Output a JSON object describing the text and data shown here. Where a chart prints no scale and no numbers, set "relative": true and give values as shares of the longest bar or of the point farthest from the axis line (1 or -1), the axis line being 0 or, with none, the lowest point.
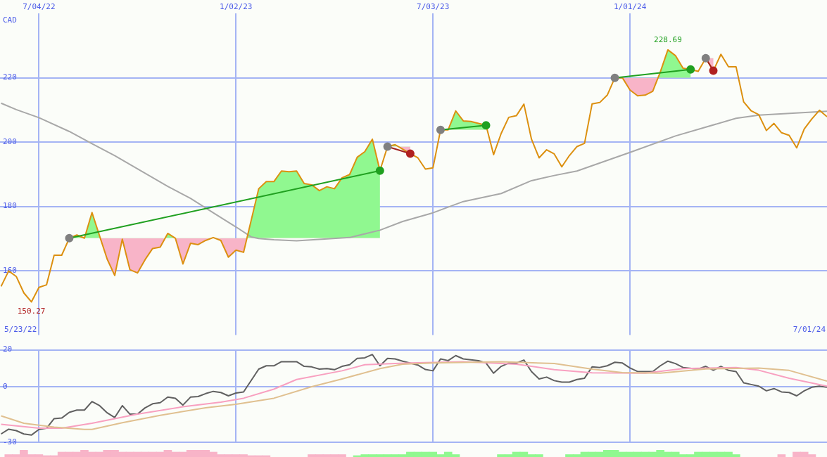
{
  "chart_data": [
    {
      "type": "line",
      "ylabel": "CAD",
      "grid": true,
      "xlim": [
        "2022-05-29",
        "2024-07-01"
      ],
      "xticks": [
        {
          "value": "2022-07-04",
          "label": "7/04/22"
        },
        {
          "value": "2023-01-02",
          "label": "1/02/23"
        },
        {
          "value": "2023-07-03",
          "label": "7/03/23"
        },
        {
          "value": "2024-01-01",
          "label": "1/01/24"
        }
      ],
      "ylim": [
        140,
        240
      ],
      "yticks": [
        160,
        180,
        200,
        220
      ],
      "annotations": [
        "5/23/22",
        "7/01/24",
        {
          "text": "150.27",
          "x": "2022-06-27",
          "y": 150.27
        },
        {
          "text": "228.69",
          "x": "2024-02-05",
          "y": 228.69
        }
      ],
      "x": [
        "2022-05-30",
        "2022-06-06",
        "2022-06-13",
        "2022-06-20",
        "2022-06-27",
        "2022-07-04",
        "2022-07-11",
        "2022-07-18",
        "2022-07-25",
        "2022-08-01",
        "2022-08-08",
        "2022-08-15",
        "2022-08-22",
        "2022-08-29",
        "2022-09-05",
        "2022-09-12",
        "2022-09-19",
        "2022-09-26",
        "2022-10-03",
        "2022-10-10",
        "2022-10-17",
        "2022-10-24",
        "2022-10-31",
        "2022-11-07",
        "2022-11-14",
        "2022-11-21",
        "2022-11-28",
        "2022-12-05",
        "2022-12-12",
        "2022-12-19",
        "2022-12-26",
        "2023-01-02",
        "2023-01-09",
        "2023-01-23",
        "2023-01-30",
        "2023-02-06",
        "2023-02-13",
        "2023-02-20",
        "2023-02-27",
        "2023-03-06",
        "2023-03-13",
        "2023-03-20",
        "2023-03-27",
        "2023-04-03",
        "2023-04-10",
        "2023-04-17",
        "2023-04-24",
        "2023-05-01",
        "2023-05-08",
        "2023-05-15",
        "2023-05-22",
        "2023-05-29",
        "2023-06-05",
        "2023-06-12",
        "2023-06-19",
        "2023-06-26",
        "2023-07-03",
        "2023-07-10",
        "2023-07-17",
        "2023-07-24",
        "2023-07-31",
        "2023-08-07",
        "2023-08-14",
        "2023-08-21",
        "2023-08-28",
        "2023-09-04",
        "2023-09-11",
        "2023-09-18",
        "2023-09-25",
        "2023-10-02",
        "2023-10-09",
        "2023-10-16",
        "2023-10-23",
        "2023-10-30",
        "2023-11-06",
        "2023-11-13",
        "2023-11-20",
        "2023-11-27",
        "2023-12-04",
        "2023-12-11",
        "2023-12-18",
        "2023-12-25",
        "2024-01-01",
        "2024-01-08",
        "2024-01-15",
        "2024-01-22",
        "2024-01-29",
        "2024-02-05",
        "2024-02-12",
        "2024-02-19",
        "2024-02-26",
        "2024-03-04",
        "2024-03-11",
        "2024-03-18",
        "2024-03-25",
        "2024-04-01",
        "2024-04-08",
        "2024-04-15",
        "2024-04-22",
        "2024-04-29",
        "2024-05-06",
        "2024-05-13",
        "2024-05-20",
        "2024-05-27",
        "2024-06-03",
        "2024-06-10",
        "2024-06-17",
        "2024-06-24",
        "2024-07-01"
      ],
      "series": [
        {
          "color": "#dc9010",
          "values": [
            155.1,
            159.9,
            158.2,
            153.1,
            150.27,
            154.8,
            155.6,
            164.8,
            164.8,
            170.1,
            171.1,
            170.1,
            178.1,
            170.8,
            163.6,
            158.5,
            169.8,
            160.3,
            159.3,
            163.4,
            166.9,
            167.3,
            171.6,
            170.1,
            162.1,
            168.5,
            168.1,
            169.4,
            170.3,
            169.4,
            164.2,
            166.4,
            165.7,
            185.5,
            187.7,
            187.7,
            191.0,
            190.8,
            191.0,
            187.1,
            186.7,
            184.9,
            186.1,
            185.5,
            188.9,
            189.9,
            195.3,
            197.0,
            200.9,
            191.1,
            198.6,
            199.2,
            197.8,
            196.4,
            195.1,
            191.6,
            192.0,
            203.8,
            203.8,
            209.7,
            206.6,
            206.4,
            205.8,
            205.2,
            196.1,
            202.7,
            207.7,
            208.2,
            211.8,
            200.9,
            195.1,
            197.6,
            196.3,
            192.3,
            195.8,
            198.6,
            199.6,
            211.9,
            212.3,
            214.6,
            220.0,
            220.0,
            216.2,
            214.4,
            214.6,
            215.8,
            221.8,
            228.69,
            226.9,
            223.0,
            222.6,
            222.0,
            226.1,
            222.2,
            227.3,
            223.4,
            223.4,
            212.5,
            209.7,
            208.5,
            203.6,
            205.8,
            202.9,
            202.1,
            198.2,
            204.1,
            207.2,
            209.9,
            207.9
          ]
        },
        {
          "color": "#a8a8a8",
          "x": [
            "2022-05-30",
            "2022-06-13",
            "2022-07-04",
            "2022-08-01",
            "2022-08-22",
            "2022-09-12",
            "2022-10-03",
            "2022-10-31",
            "2022-11-21",
            "2022-12-12",
            "2023-01-02",
            "2023-01-16",
            "2023-01-23",
            "2023-02-06",
            "2023-02-27",
            "2023-04-17",
            "2023-05-15",
            "2023-06-05",
            "2023-07-03",
            "2023-07-31",
            "2023-09-04",
            "2023-10-02",
            "2023-10-23",
            "2023-11-13",
            "2024-01-01",
            "2024-02-12",
            "2024-04-08",
            "2024-04-29",
            "2024-07-01"
          ],
          "values": [
            212.1,
            210.1,
            207.6,
            203.3,
            199.5,
            195.8,
            191.7,
            186.2,
            182.5,
            178.0,
            173.6,
            170.5,
            170.0,
            169.6,
            169.3,
            170.3,
            172.6,
            175.3,
            178.0,
            181.5,
            184.0,
            188.0,
            189.6,
            191.0,
            196.8,
            201.9,
            207.4,
            208.4,
            209.6
          ]
        },
        {
          "color": "#20a020",
          "marker": "circle",
          "colors": [
            "#808080",
            "#20a020"
          ],
          "x": [
            "2022-08-01",
            "2023-05-15"
          ],
          "values": [
            170.1,
            191.1
          ]
        },
        {
          "color": "#a02020",
          "marker": "circle",
          "colors": [
            "#808080",
            "#b02020"
          ],
          "x": [
            "2023-05-22",
            "2023-06-12"
          ],
          "values": [
            198.6,
            196.4
          ]
        },
        {
          "color": "#20a020",
          "marker": "circle",
          "colors": [
            "#808080",
            "#20a020"
          ],
          "x": [
            "2023-07-10",
            "2023-08-21"
          ],
          "values": [
            203.8,
            205.2
          ]
        },
        {
          "color": "#20a020",
          "marker": "circle",
          "colors": [
            "#808080",
            "#20a020"
          ],
          "x": [
            "2023-12-18",
            "2024-02-26"
          ],
          "values": [
            220.0,
            222.6
          ]
        },
        {
          "color": "#a02020",
          "marker": "circle",
          "colors": [
            "#808080",
            "#b02020"
          ],
          "x": [
            "2024-03-11",
            "2024-03-18"
          ],
          "values": [
            226.1,
            222.2
          ]
        }
      ]
    },
    {
      "type": "line",
      "grid": true,
      "tick_labels": "y",
      "xlim": [
        "2022-05-29",
        "2024-07-01"
      ],
      "xticks": [
        {
          "value": "2022-07-04",
          "label": null
        },
        {
          "value": "2023-01-02",
          "label": null
        },
        {
          "value": "2023-07-03",
          "label": null
        },
        {
          "value": "2024-01-01",
          "label": null
        }
      ],
      "ylim": [
        -30,
        20
      ],
      "yticks": [
        -30,
        0,
        20
      ],
      "series": [
        {
          "color": "#e0c090",
          "x": [
            "2022-05-30",
            "2022-06-20",
            "2022-07-18",
            "2022-08-15",
            "2022-08-22",
            "2022-09-19",
            "2022-10-24",
            "2022-12-05",
            "2023-01-02",
            "2023-02-06",
            "2023-03-13",
            "2023-04-10",
            "2023-05-15",
            "2023-06-05",
            "2023-07-03",
            "2023-09-04",
            "2023-10-23",
            "2023-11-27",
            "2023-12-25",
            "2024-01-29",
            "2024-03-11",
            "2024-04-29",
            "2024-05-27",
            "2024-07-01"
          ],
          "values": [
            -15.6,
            -19.6,
            -21.7,
            -22.9,
            -22.9,
            -19.3,
            -15.3,
            -11.3,
            -9.4,
            -6.1,
            0.1,
            4.3,
            9.9,
            12.3,
            12.9,
            13.6,
            12.6,
            9.6,
            7.7,
            7.4,
            9.7,
            10.2,
            8.9,
            3.1
          ]
        },
        {
          "color": "#f8a0c0",
          "x": [
            "2022-05-30",
            "2022-07-04",
            "2022-07-25",
            "2022-08-22",
            "2022-10-03",
            "2022-11-14",
            "2022-12-19",
            "2023-01-09",
            "2023-02-06",
            "2023-02-27",
            "2023-04-10",
            "2023-05-01",
            "2023-05-29",
            "2023-06-12",
            "2023-07-31",
            "2023-09-18",
            "2023-10-23",
            "2023-11-27",
            "2024-01-15",
            "2024-02-19",
            "2024-04-08",
            "2024-04-29",
            "2024-05-27",
            "2024-07-01"
          ],
          "values": [
            -20.2,
            -22.3,
            -22.3,
            -19.6,
            -14.7,
            -10.7,
            -8.2,
            -6.1,
            -1.2,
            4.0,
            8.7,
            12.0,
            12.6,
            12.9,
            13.6,
            12.3,
            9.3,
            7.6,
            7.4,
            9.9,
            10.5,
            9.0,
            4.7,
            0.4
          ]
        },
        {
          "color": "#606060",
          "x": [
            "2022-05-30",
            "2022-06-06",
            "2022-06-13",
            "2022-06-20",
            "2022-06-27",
            "2022-07-04",
            "2022-07-11",
            "2022-07-18",
            "2022-07-25",
            "2022-08-01",
            "2022-08-08",
            "2022-08-15",
            "2022-08-22",
            "2022-08-29",
            "2022-09-05",
            "2022-09-12",
            "2022-09-19",
            "2022-09-26",
            "2022-10-03",
            "2022-10-10",
            "2022-10-17",
            "2022-10-24",
            "2022-10-31",
            "2022-11-07",
            "2022-11-14",
            "2022-11-21",
            "2022-11-28",
            "2022-12-05",
            "2022-12-12",
            "2022-12-19",
            "2022-12-26",
            "2023-01-02",
            "2023-01-09",
            "2023-01-23",
            "2023-01-30",
            "2023-02-06",
            "2023-02-13",
            "2023-02-27",
            "2023-03-06",
            "2023-03-13",
            "2023-03-20",
            "2023-03-27",
            "2023-04-03",
            "2023-04-10",
            "2023-04-17",
            "2023-04-24",
            "2023-05-01",
            "2023-05-08",
            "2023-05-15",
            "2023-05-22",
            "2023-05-29",
            "2023-06-05",
            "2023-06-19",
            "2023-06-26",
            "2023-07-03",
            "2023-07-10",
            "2023-07-17",
            "2023-07-24",
            "2023-07-31",
            "2023-08-14",
            "2023-08-21",
            "2023-08-28",
            "2023-09-04",
            "2023-09-11",
            "2023-09-18",
            "2023-09-25",
            "2023-10-02",
            "2023-10-09",
            "2023-10-16",
            "2023-10-23",
            "2023-10-30",
            "2023-11-06",
            "2023-11-13",
            "2023-11-20",
            "2023-11-27",
            "2023-12-04",
            "2023-12-11",
            "2023-12-18",
            "2023-12-25",
            "2024-01-01",
            "2024-01-08",
            "2024-01-22",
            "2024-01-29",
            "2024-02-05",
            "2024-02-12",
            "2024-02-19",
            "2024-03-04",
            "2024-03-11",
            "2024-03-18",
            "2024-03-25",
            "2024-04-01",
            "2024-04-08",
            "2024-04-15",
            "2024-04-22",
            "2024-04-29",
            "2024-05-06",
            "2024-05-13",
            "2024-05-20",
            "2024-05-27",
            "2024-06-03",
            "2024-06-10",
            "2024-06-17",
            "2024-06-24",
            "2024-07-01"
          ],
          "values": [
            -25.4,
            -22.8,
            -23.6,
            -25.4,
            -26.0,
            -22.9,
            -22.3,
            -17.1,
            -16.8,
            -13.7,
            -12.5,
            -12.5,
            -7.9,
            -10.1,
            -14.0,
            -16.5,
            -10.1,
            -14.7,
            -14.7,
            -11.3,
            -9.1,
            -8.5,
            -5.5,
            -6.1,
            -9.8,
            -5.5,
            -5.2,
            -3.6,
            -2.4,
            -3.0,
            -4.8,
            -3.3,
            -2.7,
            9.6,
            11.4,
            11.4,
            13.6,
            13.6,
            11.1,
            10.8,
            9.6,
            9.9,
            9.3,
            11.1,
            12.0,
            15.4,
            15.7,
            17.5,
            11.4,
            15.4,
            15.1,
            13.9,
            11.8,
            9.4,
            8.7,
            15.1,
            14.2,
            16.9,
            15.1,
            14.2,
            12.9,
            7.4,
            11.1,
            12.9,
            12.9,
            14.5,
            8.3,
            4.3,
            5.3,
            3.4,
            2.6,
            2.6,
            4.0,
            4.7,
            10.8,
            10.5,
            11.4,
            13.3,
            12.9,
            10.2,
            8.3,
            8.3,
            11.4,
            13.9,
            12.6,
            10.5,
            9.6,
            11.1,
            9.0,
            11.1,
            8.9,
            8.3,
            2.2,
            1.3,
            0.4,
            -2.1,
            -0.9,
            -2.7,
            -3.0,
            -4.8,
            -2.1,
            -0.2,
            0.4,
            -0.2
          ]
        }
      ]
    },
    {
      "type": "bar",
      "relative": true,
      "tick_labels": false,
      "xlim": [
        "2022-05-29",
        "2024-07-01"
      ],
      "series": [
        {
          "color": "#f8b4c8",
          "x": [
            "2022-06-06",
            "2022-06-13",
            "2022-06-20",
            "2022-06-27",
            "2022-07-04",
            "2022-07-11",
            "2022-07-18",
            "2022-07-25",
            "2022-08-01",
            "2022-08-08",
            "2022-08-15",
            "2022-08-22",
            "2022-08-29",
            "2022-09-05",
            "2022-09-12",
            "2022-09-19",
            "2022-09-26",
            "2022-10-03",
            "2022-10-10",
            "2022-10-17",
            "2022-10-24",
            "2022-10-31",
            "2022-11-07",
            "2022-11-14",
            "2022-11-21",
            "2022-11-28",
            "2022-12-05",
            "2022-12-12",
            "2022-12-19",
            "2022-12-26",
            "2023-01-02",
            "2023-01-09",
            "2023-01-16",
            "2023-01-23",
            "2023-01-30",
            "2023-03-13",
            "2023-03-20",
            "2023-03-27",
            "2023-04-03",
            "2023-04-10",
            "2024-05-20",
            "2024-06-03",
            "2024-06-10",
            "2024-06-17"
          ],
          "values": [
            0.35,
            0.35,
            1,
            0.35,
            0.35,
            0.2,
            0.2,
            0.7,
            0.7,
            0.7,
            1,
            0.7,
            0.7,
            1,
            1,
            0.7,
            0.7,
            0.7,
            0.7,
            0.7,
            0.7,
            1,
            0.7,
            0.7,
            1,
            1,
            1,
            0.7,
            0.35,
            0.35,
            0.35,
            0.35,
            0.2,
            0.2,
            0.2,
            0.35,
            0.35,
            0.35,
            0.35,
            0.35,
            0.35,
            0.7,
            0.7,
            0.35
          ]
        },
        {
          "color": "#90f890",
          "x": [
            "2023-04-24",
            "2023-05-01",
            "2023-05-08",
            "2023-05-15",
            "2023-05-22",
            "2023-05-29",
            "2023-06-05",
            "2023-06-12",
            "2023-06-19",
            "2023-06-26",
            "2023-07-03",
            "2023-07-10",
            "2023-07-17",
            "2023-07-24",
            "2023-09-04",
            "2023-09-11",
            "2023-09-18",
            "2023-09-25",
            "2023-10-02",
            "2023-10-09",
            "2023-11-06",
            "2023-11-13",
            "2023-11-20",
            "2023-11-27",
            "2023-12-04",
            "2023-12-11",
            "2023-12-18",
            "2023-12-25",
            "2024-01-01",
            "2024-01-08",
            "2024-01-15",
            "2024-01-22",
            "2024-01-29",
            "2024-02-05",
            "2024-02-12",
            "2024-02-19",
            "2024-02-26",
            "2024-03-04",
            "2024-03-11",
            "2024-03-18",
            "2024-03-25",
            "2024-04-01",
            "2024-04-08"
          ],
          "values": [
            0.2,
            0.35,
            0.35,
            0.35,
            0.35,
            0.35,
            0.35,
            0.7,
            0.7,
            0.7,
            0.7,
            0.35,
            0.7,
            0.35,
            0.35,
            0.35,
            0.7,
            0.7,
            0.35,
            0.35,
            0.35,
            0.35,
            0.7,
            0.7,
            0.7,
            1,
            1,
            0.7,
            0.7,
            0.7,
            0.7,
            0.7,
            1,
            0.7,
            0.7,
            0.35,
            0.35,
            0.7,
            0.7,
            0.7,
            0.7,
            0.7,
            0.35
          ]
        }
      ]
    }
  ]
}
